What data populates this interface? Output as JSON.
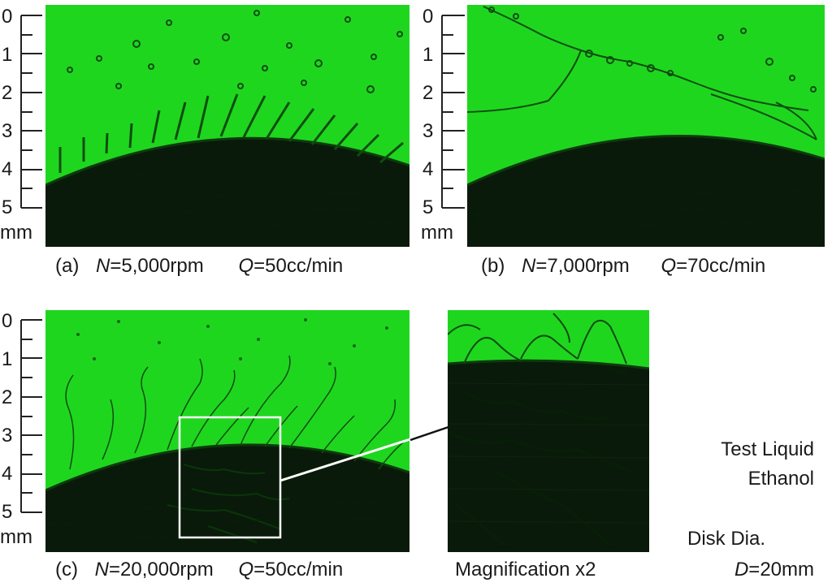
{
  "scale": {
    "ticks": [
      "0",
      "1",
      "2",
      "3",
      "4",
      "5"
    ],
    "unit": "mm"
  },
  "panels": {
    "a": {
      "label": "(a)",
      "n_symbol": "N",
      "n_value": "=5,000rpm",
      "q_symbol": "Q",
      "q_value": "=50cc/min"
    },
    "b": {
      "label": "(b)",
      "n_symbol": "N",
      "n_value": "=7,000rpm",
      "q_symbol": "Q",
      "q_value": "=70cc/min"
    },
    "c": {
      "label": "(c)",
      "n_symbol": "N",
      "n_value": "=20,000rpm",
      "q_symbol": "Q",
      "q_value": "=50cc/min"
    },
    "zoom": {
      "label": "Magnification x2"
    }
  },
  "legend": {
    "liquid_title": "Test Liquid",
    "liquid_value": "Ethanol",
    "disk_title": "Disk Dia.",
    "disk_symbol": "D",
    "disk_value": "=20mm"
  },
  "colors": {
    "liquid_green": "#1fd61f",
    "disk_dark": "#0a1a0a"
  }
}
